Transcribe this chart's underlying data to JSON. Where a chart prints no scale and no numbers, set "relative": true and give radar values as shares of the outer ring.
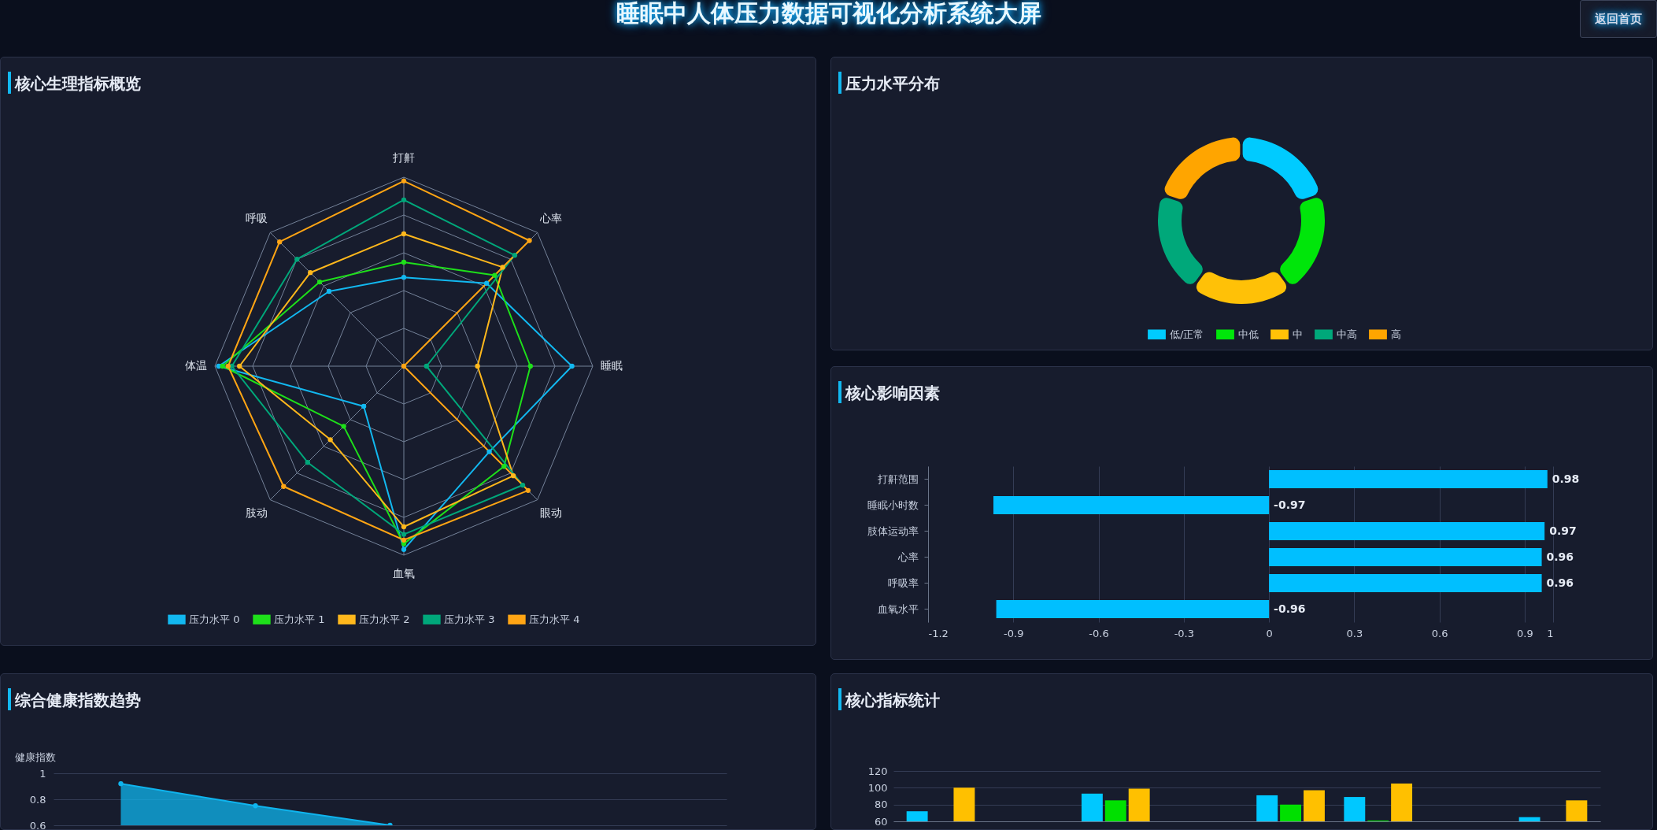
{
  "chart_data": [
    {
      "type": "radar",
      "title": "核心生理指标概览",
      "categories": [
        "打鼾",
        "心率",
        "睡眠",
        "眼动",
        "血氧",
        "肢动",
        "体温",
        "呼吸"
      ],
      "relative": true,
      "marker": "circle",
      "line_style": "solid",
      "legend": "bottom",
      "series": [
        {
          "name": "压力水平 0",
          "color": "#12b8f0",
          "values": [
            0.47,
            0.62,
            0.89,
            0.64,
            0.97,
            0.3,
            0.98,
            0.56
          ]
        },
        {
          "name": "压力水平 1",
          "color": "#1ee01a",
          "values": [
            0.55,
            0.68,
            0.67,
            0.75,
            0.94,
            0.45,
            0.96,
            0.63
          ]
        },
        {
          "name": "压力水平 2",
          "color": "#ffb81c",
          "values": [
            0.7,
            0.74,
            0.39,
            0.82,
            0.85,
            0.55,
            0.87,
            0.7
          ]
        },
        {
          "name": "压力水平 3",
          "color": "#00a77a",
          "values": [
            0.88,
            0.83,
            0.12,
            0.89,
            0.89,
            0.72,
            0.91,
            0.8
          ]
        },
        {
          "name": "压力水平 4",
          "color": "#ffa514",
          "values": [
            0.98,
            0.94,
            0,
            0.93,
            0.92,
            0.9,
            0.93,
            0.93
          ]
        }
      ]
    },
    {
      "type": "donut",
      "title": "压力水平分布",
      "categories": [
        "低/正常",
        "中低",
        "中",
        "中高",
        "高"
      ],
      "values": [
        20,
        20,
        20,
        20,
        20
      ],
      "colors": [
        "#00cbff",
        "#00e60a",
        "#ffc107",
        "#00a87a",
        "#ffa500"
      ],
      "legend": "bottom"
    },
    {
      "type": "bar",
      "title": "核心影响因素",
      "orientation": "horizontal",
      "categories": [
        "打鼾范围",
        "睡眠小时数",
        "肢体运动率",
        "心率",
        "呼吸率",
        "血氧水平"
      ],
      "values": [
        0.98,
        -0.97,
        0.97,
        0.96,
        0.96,
        -0.96
      ],
      "color": "#00bfff",
      "xlim": [
        -1.2,
        1
      ],
      "xticks": [
        -1.2,
        -0.9,
        -0.6,
        -0.3,
        0,
        0.3,
        0.6,
        0.9,
        1
      ],
      "grid": "x",
      "data_labels": true
    },
    {
      "type": "area",
      "title": "综合健康指数趋势",
      "ylabel": "健康指数",
      "categories": [
        null,
        null,
        null,
        null,
        null
      ],
      "values": [
        0.92,
        0.75,
        0.6,
        null,
        null
      ],
      "color": "#0fb4ee",
      "ylim": [
        0.6,
        1
      ],
      "yticks": [
        0.6,
        0.8,
        1
      ],
      "grid": "y",
      "marker": "circle",
      "tick_labels": "y"
    },
    {
      "type": "bar",
      "title": "核心指标统计",
      "categories": [
        null,
        null,
        null,
        null,
        null,
        null,
        null,
        null
      ],
      "ylim": [
        60,
        120
      ],
      "yticks": [
        60,
        80,
        100,
        120
      ],
      "grid": "y",
      "tick_labels": "y",
      "series": [
        {
          "color": "#00c8ff",
          "values": [
            72,
            null,
            93,
            null,
            91,
            89,
            null,
            65
          ]
        },
        {
          "color": "#00e000",
          "values": [
            null,
            null,
            85,
            null,
            80,
            61,
            null,
            null
          ]
        },
        {
          "color": "#ffc000",
          "values": [
            100,
            null,
            99,
            null,
            97,
            105,
            null,
            85
          ]
        }
      ]
    },
    {
      "type": "other",
      "title": "睡眠中人体压力数据可视化分析系统大屏",
      "annotations": [
        "返回首页"
      ]
    }
  ]
}
